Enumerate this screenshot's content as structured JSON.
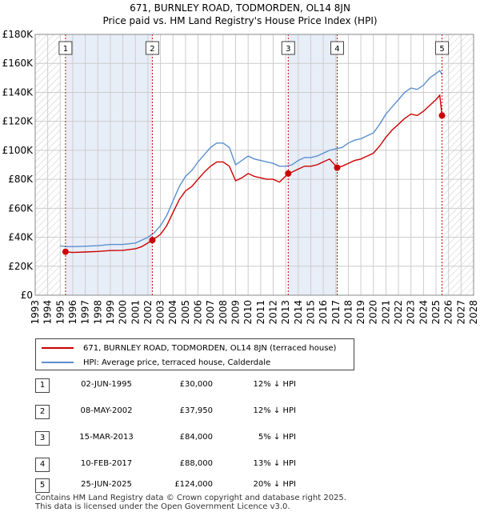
{
  "title_line1": "671, BURNLEY ROAD, TODMORDEN, OL14 8JN",
  "title_line2": "Price paid vs. HM Land Registry's House Price Index (HPI)",
  "legend": {
    "property_label": "671, BURNLEY ROAD, TODMORDEN, OL14 8JN (terraced house)",
    "hpi_label": "HPI: Average price, terraced house, Calderdale"
  },
  "colors": {
    "property": "#cc0000",
    "hpi": "#5b8fd0",
    "band": "#e8eef8",
    "grid": "#cccccc"
  },
  "sales": [
    {
      "num": "1",
      "date": "02-JUN-1995",
      "price": "£30,000",
      "hpi": "12% ↓ HPI"
    },
    {
      "num": "2",
      "date": "08-MAY-2002",
      "price": "£37,950",
      "hpi": "12% ↓ HPI"
    },
    {
      "num": "3",
      "date": "15-MAR-2013",
      "price": "£84,000",
      "hpi": "5% ↓ HPI"
    },
    {
      "num": "4",
      "date": "10-FEB-2017",
      "price": "£88,000",
      "hpi": "13% ↓ HPI"
    },
    {
      "num": "5",
      "date": "25-JUN-2025",
      "price": "£124,000",
      "hpi": "20% ↓ HPI"
    }
  ],
  "footer_line1": "Contains HM Land Registry data © Crown copyright and database right 2025.",
  "footer_line2": "This data is licensed under the Open Government Licence v3.0.",
  "chart_data": {
    "type": "line",
    "title": "671, BURNLEY ROAD, TODMORDEN, OL14 8JN",
    "subtitle": "Price paid vs. HM Land Registry's House Price Index (HPI)",
    "xlim": [
      1993,
      2028
    ],
    "ylim": [
      0,
      180000
    ],
    "x_ticks": [
      "1993",
      "1994",
      "1995",
      "1996",
      "1997",
      "1998",
      "1999",
      "2000",
      "2001",
      "2002",
      "2003",
      "2004",
      "2005",
      "2006",
      "2007",
      "2008",
      "2009",
      "2010",
      "2011",
      "2012",
      "2013",
      "2014",
      "2015",
      "2016",
      "2017",
      "2018",
      "2019",
      "2020",
      "2021",
      "2022",
      "2023",
      "2024",
      "2025",
      "2026",
      "2027",
      "2028"
    ],
    "y_ticks": [
      {
        "value": 0,
        "label": "£0"
      },
      {
        "value": 20000,
        "label": "£20K"
      },
      {
        "value": 40000,
        "label": "£40K"
      },
      {
        "value": 60000,
        "label": "£60K"
      },
      {
        "value": 80000,
        "label": "£80K"
      },
      {
        "value": 100000,
        "label": "£100K"
      },
      {
        "value": 120000,
        "label": "£120K"
      },
      {
        "value": 140000,
        "label": "£140K"
      },
      {
        "value": 160000,
        "label": "£160K"
      },
      {
        "value": 180000,
        "label": "£180K"
      }
    ],
    "shaded_periods": [
      [
        1995.42,
        2002.35
      ],
      [
        2013.2,
        2017.11
      ],
      [
        2025.48,
        2028
      ]
    ],
    "hatched_periods": [
      [
        1993,
        1995.0
      ],
      [
        2025.48,
        2028
      ]
    ],
    "sale_markers": [
      {
        "label": "1",
        "x": 1995.42,
        "y": 30000
      },
      {
        "label": "2",
        "x": 2002.35,
        "y": 37950
      },
      {
        "label": "3",
        "x": 2013.2,
        "y": 84000
      },
      {
        "label": "4",
        "x": 2017.11,
        "y": 88000
      },
      {
        "label": "5",
        "x": 2025.48,
        "y": 124000
      }
    ],
    "series": [
      {
        "name": "HPI: Average price, terraced house, Calderdale",
        "points": [
          [
            1995.0,
            34000
          ],
          [
            1995.5,
            33500
          ],
          [
            1996,
            33500
          ],
          [
            1997,
            33800
          ],
          [
            1998,
            34200
          ],
          [
            1999,
            35000
          ],
          [
            2000,
            35000
          ],
          [
            2001,
            36000
          ],
          [
            2001.5,
            38000
          ],
          [
            2002,
            40000
          ],
          [
            2002.5,
            43000
          ],
          [
            2003,
            48000
          ],
          [
            2003.5,
            55000
          ],
          [
            2004,
            65000
          ],
          [
            2004.5,
            75000
          ],
          [
            2005,
            82000
          ],
          [
            2005.5,
            86000
          ],
          [
            2006,
            92000
          ],
          [
            2006.5,
            97000
          ],
          [
            2007,
            102000
          ],
          [
            2007.5,
            105000
          ],
          [
            2008,
            105000
          ],
          [
            2008.5,
            102000
          ],
          [
            2009,
            90000
          ],
          [
            2009.5,
            93000
          ],
          [
            2010,
            96000
          ],
          [
            2010.5,
            94000
          ],
          [
            2011,
            93000
          ],
          [
            2011.5,
            92000
          ],
          [
            2012,
            91000
          ],
          [
            2012.5,
            89000
          ],
          [
            2013,
            89000
          ],
          [
            2013.5,
            90000
          ],
          [
            2014,
            93000
          ],
          [
            2014.5,
            95000
          ],
          [
            2015,
            95000
          ],
          [
            2015.5,
            96000
          ],
          [
            2016,
            98000
          ],
          [
            2016.5,
            100000
          ],
          [
            2017,
            101000
          ],
          [
            2017.5,
            102000
          ],
          [
            2018,
            105000
          ],
          [
            2018.5,
            107000
          ],
          [
            2019,
            108000
          ],
          [
            2019.5,
            110000
          ],
          [
            2020,
            112000
          ],
          [
            2020.5,
            118000
          ],
          [
            2021,
            125000
          ],
          [
            2021.5,
            130000
          ],
          [
            2022,
            135000
          ],
          [
            2022.5,
            140000
          ],
          [
            2023,
            143000
          ],
          [
            2023.5,
            142000
          ],
          [
            2024,
            145000
          ],
          [
            2024.5,
            150000
          ],
          [
            2025,
            153000
          ],
          [
            2025.3,
            155000
          ],
          [
            2025.5,
            152000
          ]
        ]
      },
      {
        "name": "671, BURNLEY ROAD, TODMORDEN, OL14 8JN (terraced house)",
        "points": [
          [
            1995.42,
            30000
          ],
          [
            1996,
            29500
          ],
          [
            1997,
            29800
          ],
          [
            1998,
            30200
          ],
          [
            1999,
            30800
          ],
          [
            2000,
            31000
          ],
          [
            2001,
            32000
          ],
          [
            2001.5,
            33500
          ],
          [
            2002.35,
            37950
          ],
          [
            2003,
            42000
          ],
          [
            2003.5,
            48000
          ],
          [
            2004,
            57000
          ],
          [
            2004.5,
            66000
          ],
          [
            2005,
            72000
          ],
          [
            2005.5,
            75000
          ],
          [
            2006,
            80000
          ],
          [
            2006.5,
            85000
          ],
          [
            2007,
            89000
          ],
          [
            2007.5,
            92000
          ],
          [
            2008,
            92000
          ],
          [
            2008.5,
            89000
          ],
          [
            2009,
            79000
          ],
          [
            2009.5,
            81000
          ],
          [
            2010,
            84000
          ],
          [
            2010.5,
            82000
          ],
          [
            2011,
            81000
          ],
          [
            2011.5,
            80000
          ],
          [
            2012,
            80000
          ],
          [
            2012.5,
            78000
          ],
          [
            2013.2,
            84000
          ],
          [
            2013.5,
            85000
          ],
          [
            2014,
            87000
          ],
          [
            2014.5,
            89000
          ],
          [
            2015,
            89000
          ],
          [
            2015.5,
            90000
          ],
          [
            2016,
            92000
          ],
          [
            2016.5,
            94000
          ],
          [
            2017.11,
            88000
          ],
          [
            2017.5,
            89000
          ],
          [
            2018,
            91000
          ],
          [
            2018.5,
            93000
          ],
          [
            2019,
            94000
          ],
          [
            2019.5,
            96000
          ],
          [
            2020,
            98000
          ],
          [
            2020.5,
            103000
          ],
          [
            2021,
            109000
          ],
          [
            2021.5,
            114000
          ],
          [
            2022,
            118000
          ],
          [
            2022.5,
            122000
          ],
          [
            2023,
            125000
          ],
          [
            2023.5,
            124000
          ],
          [
            2024,
            127000
          ],
          [
            2024.5,
            131000
          ],
          [
            2025,
            135000
          ],
          [
            2025.3,
            138000
          ],
          [
            2025.48,
            124000
          ]
        ]
      }
    ]
  }
}
